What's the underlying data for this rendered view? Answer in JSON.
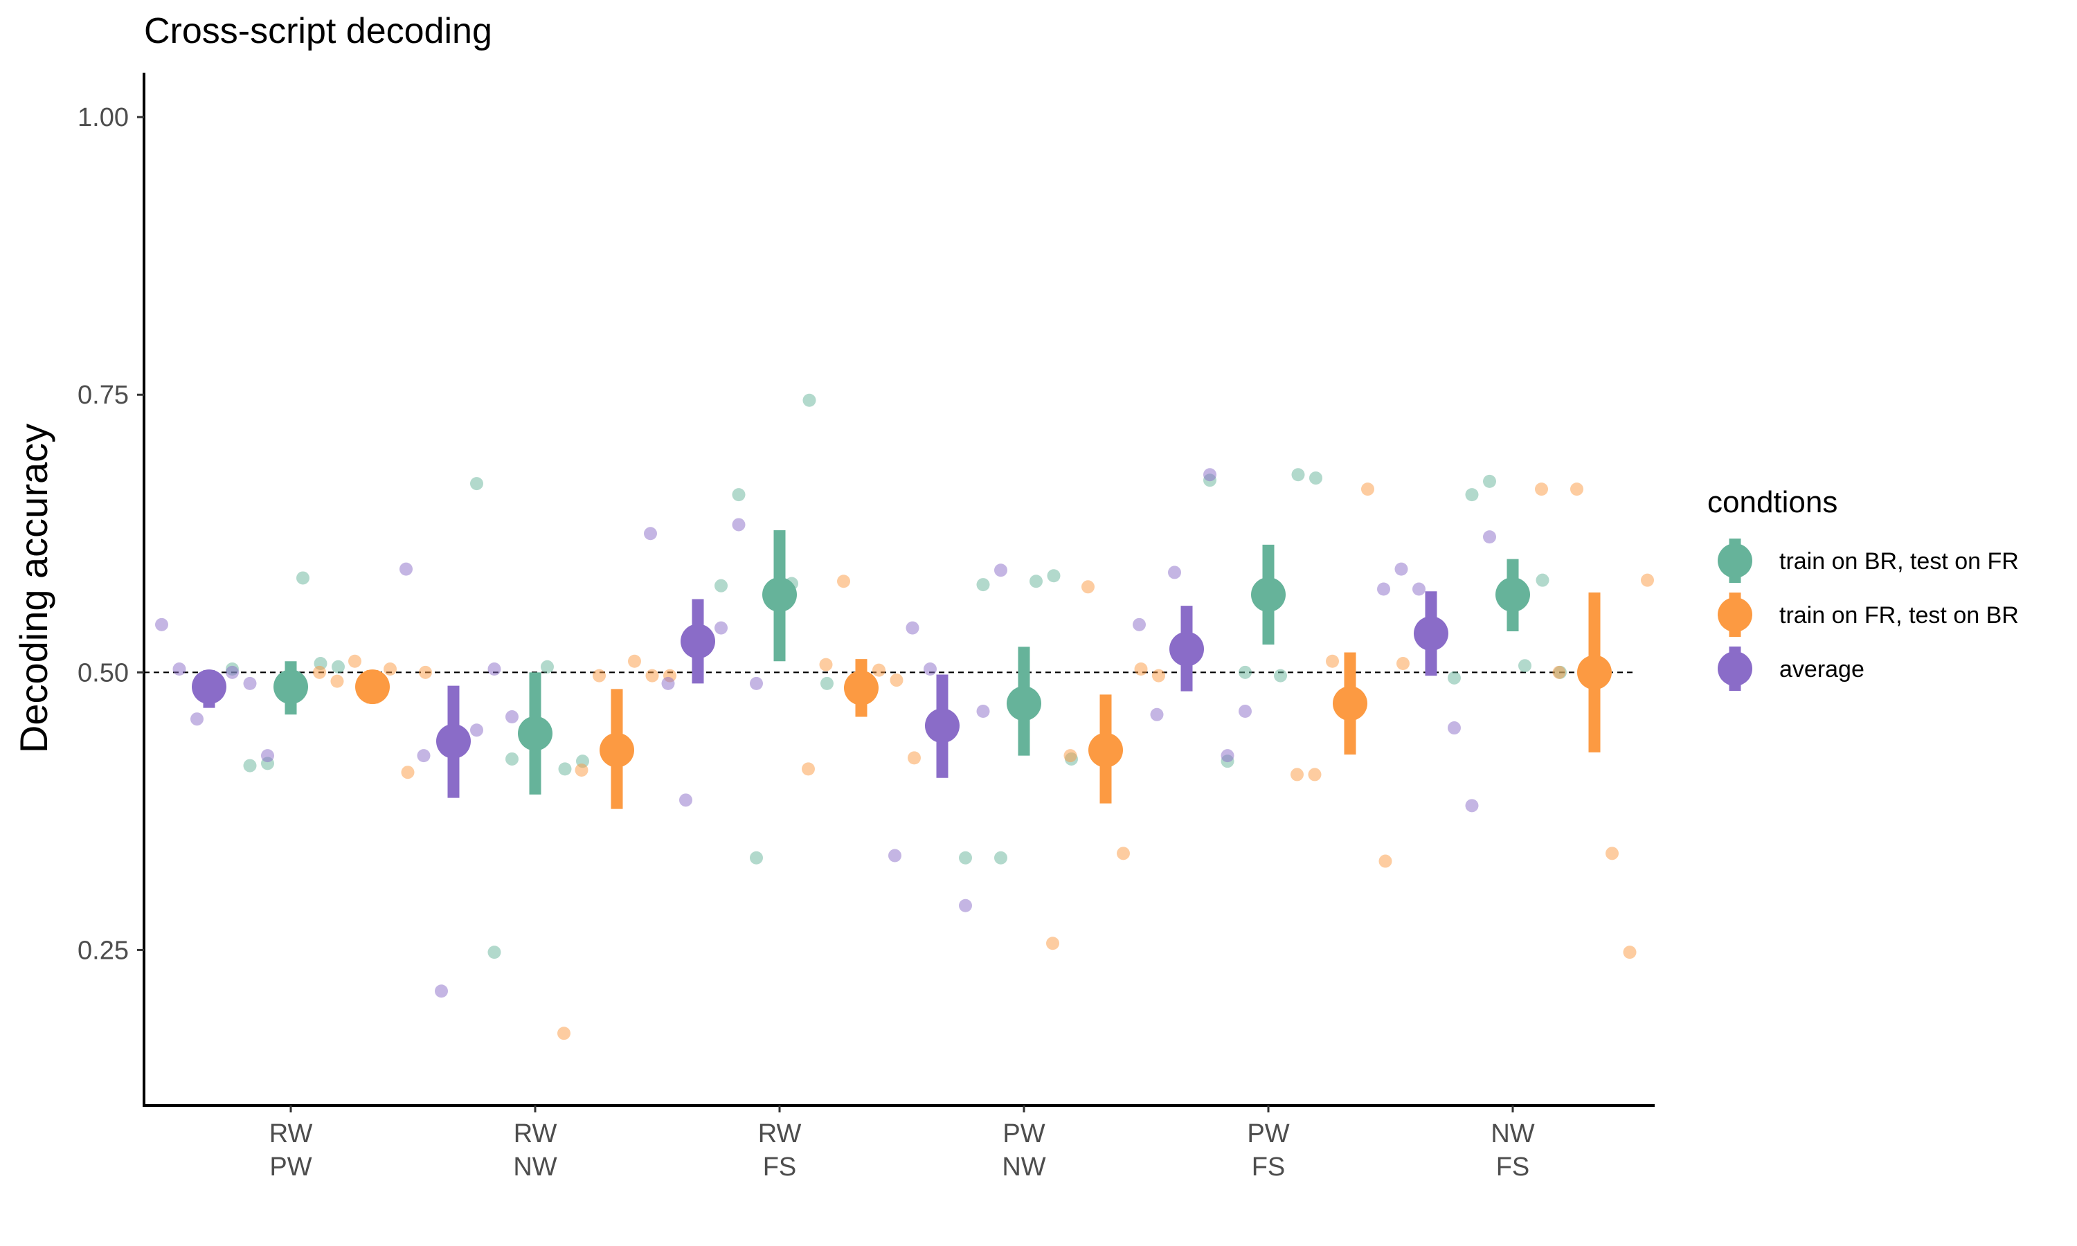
{
  "chart_data": {
    "type": "scatter",
    "title": "Cross-script decoding",
    "xlabel": "",
    "ylabel": "Decoding accuracy",
    "ylim": [
      0.11,
      1.04
    ],
    "yticks": [
      0.25,
      0.5,
      0.75,
      1.0
    ],
    "ytick_labels": [
      "0.25",
      "0.50",
      "0.75",
      "1.00"
    ],
    "reference_line": 0.5,
    "grid": false,
    "legend_position": "right",
    "legend_title": "condtions",
    "categories": [
      [
        "RW",
        "PW"
      ],
      [
        "RW",
        "NW"
      ],
      [
        "RW",
        "FS"
      ],
      [
        "PW",
        "NW"
      ],
      [
        "PW",
        "FS"
      ],
      [
        "NW",
        "FS"
      ]
    ],
    "series": [
      {
        "name": "train on BR, test on FR",
        "color": "#66b39a",
        "mean": [
          0.487,
          0.445,
          0.57,
          0.472,
          0.57,
          0.57
        ],
        "lower": [
          0.462,
          0.39,
          0.51,
          0.425,
          0.525,
          0.537
        ],
        "upper": [
          0.51,
          0.5,
          0.628,
          0.523,
          0.615,
          0.602
        ],
        "points": [
          [
            0.503,
            0.416,
            0.418,
            0.585,
            0.508,
            0.505
          ],
          [
            0.67,
            0.248,
            0.422,
            0.505,
            0.413,
            0.42
          ],
          [
            0.578,
            0.66,
            0.333,
            0.58,
            0.745,
            0.49
          ],
          [
            0.333,
            0.579,
            0.333,
            0.582,
            0.587,
            0.422
          ],
          [
            0.673,
            0.42,
            0.5,
            0.497,
            0.678,
            0.675
          ],
          [
            0.495,
            0.66,
            0.672,
            0.506,
            0.583,
            0.5
          ]
        ]
      },
      {
        "name": "train on FR, test on BR",
        "color": "#fc9a42",
        "mean": [
          0.487,
          0.43,
          0.486,
          0.43,
          0.472,
          0.5
        ],
        "lower": [
          0.472,
          0.377,
          0.46,
          0.382,
          0.426,
          0.428
        ],
        "upper": [
          0.502,
          0.485,
          0.512,
          0.48,
          0.518,
          0.572
        ],
        "points": [
          [
            0.5,
            0.492,
            0.51,
            0.503,
            0.41,
            0.5
          ],
          [
            0.175,
            0.412,
            0.497,
            0.51,
            0.497,
            0.497
          ],
          [
            0.413,
            0.507,
            0.582,
            0.502,
            0.493,
            0.423
          ],
          [
            0.256,
            0.425,
            0.577,
            0.337,
            0.503,
            0.497
          ],
          [
            0.408,
            0.408,
            0.51,
            0.665,
            0.33,
            0.508
          ],
          [
            0.665,
            0.5,
            0.665,
            0.337,
            0.248,
            0.583
          ]
        ]
      },
      {
        "name": "average",
        "color": "#8a6cc8",
        "mean": [
          0.487,
          0.438,
          0.528,
          0.452,
          0.521,
          0.535
        ],
        "lower": [
          0.468,
          0.387,
          0.49,
          0.405,
          0.483,
          0.497
        ],
        "upper": [
          0.502,
          0.488,
          0.566,
          0.498,
          0.56,
          0.573
        ],
        "points": [
          [
            0.543,
            0.503,
            0.458,
            0.5,
            0.49,
            0.425
          ],
          [
            0.593,
            0.425,
            0.213,
            0.448,
            0.503,
            0.46
          ],
          [
            0.625,
            0.49,
            0.385,
            0.54,
            0.633,
            0.49
          ],
          [
            0.335,
            0.54,
            0.503,
            0.29,
            0.465,
            0.592
          ],
          [
            0.543,
            0.462,
            0.59,
            0.678,
            0.425,
            0.465
          ],
          [
            0.575,
            0.593,
            0.575,
            0.45,
            0.38,
            0.622
          ]
        ]
      }
    ]
  }
}
